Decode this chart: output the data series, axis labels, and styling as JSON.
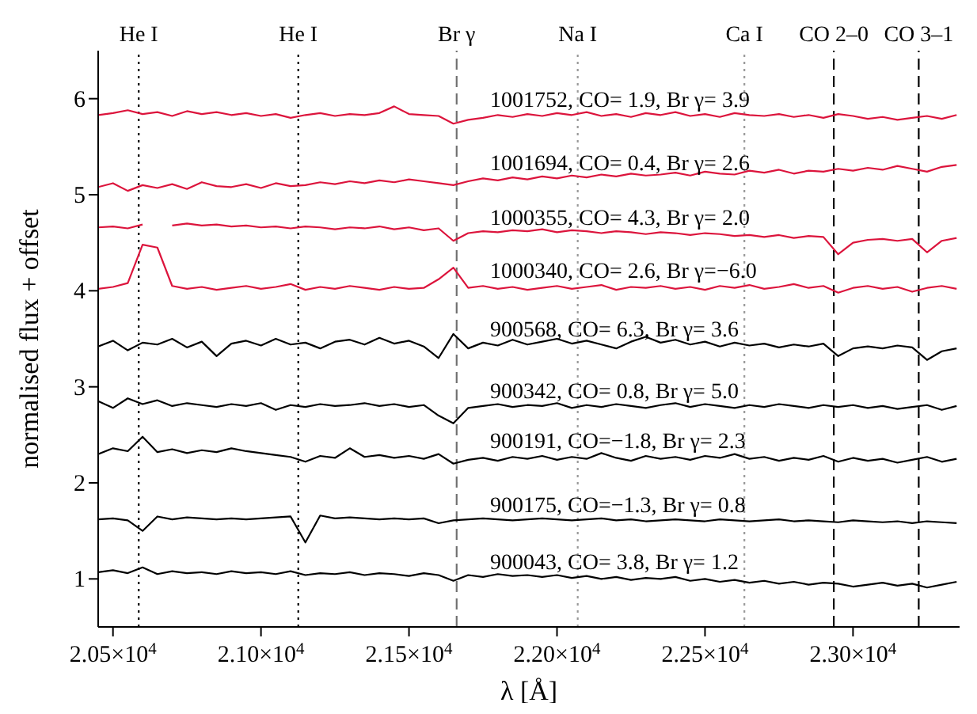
{
  "chart_data": {
    "type": "line",
    "xlabel": "λ [Å]",
    "ylabel": "normalised flux + offset",
    "xlim": [
      20450,
      23360
    ],
    "ylim": [
      0.5,
      6.5
    ],
    "xticks": [
      {
        "value": 20500,
        "label": "2.05×10$^{4}$"
      },
      {
        "value": 21000,
        "label": "2.10×10$^{4}$"
      },
      {
        "value": 21500,
        "label": "2.15×10$^{4}$"
      },
      {
        "value": 22000,
        "label": "2.20×10$^{4}$"
      },
      {
        "value": 22500,
        "label": "2.25×10$^{4}$"
      },
      {
        "value": 23000,
        "label": "2.30×10$^{4}$"
      }
    ],
    "yticks": [
      1,
      2,
      3,
      4,
      5,
      6
    ],
    "grid": false,
    "marker": "none",
    "x": [
      20450,
      20500,
      20550,
      20600,
      20650,
      20700,
      20750,
      20800,
      20850,
      20900,
      20950,
      21000,
      21050,
      21100,
      21150,
      21200,
      21250,
      21300,
      21350,
      21400,
      21450,
      21500,
      21550,
      21600,
      21650,
      21700,
      21750,
      21800,
      21850,
      21900,
      21950,
      22000,
      22050,
      22100,
      22150,
      22200,
      22250,
      22300,
      22350,
      22400,
      22450,
      22500,
      22550,
      22600,
      22650,
      22700,
      22750,
      22800,
      22850,
      22900,
      22950,
      23000,
      23050,
      23100,
      23150,
      23200,
      23250,
      23300,
      23350
    ],
    "ref_lines": [
      {
        "axis": "x",
        "value": 20587,
        "label": "He I",
        "color": "#000000",
        "line_style": "dotted"
      },
      {
        "axis": "x",
        "value": 21126,
        "label": "He I",
        "color": "#000000",
        "line_style": "dotted"
      },
      {
        "axis": "x",
        "value": 21661,
        "label": "Br γ",
        "color": "#707070",
        "line_style": "dashed"
      },
      {
        "axis": "x",
        "value": 22070,
        "label": "Na I",
        "color": "#999999",
        "line_style": "dotted"
      },
      {
        "axis": "x",
        "value": 22633,
        "label": "Ca I",
        "color": "#999999",
        "line_style": "dotted"
      },
      {
        "axis": "x",
        "value": 22935,
        "label": "CO 2–0",
        "color": "#000000",
        "line_style": "dashed"
      },
      {
        "axis": "x",
        "value": 23222,
        "label": "CO 3–1",
        "color": "#000000",
        "line_style": "dashed"
      }
    ],
    "series": [
      {
        "name": "1001752, CO= 1.9, Br γ= 3.9",
        "color": "#dc143c",
        "values": [
          5.83,
          5.85,
          5.88,
          5.84,
          5.86,
          5.82,
          5.87,
          5.84,
          5.86,
          5.83,
          5.85,
          5.82,
          5.84,
          5.8,
          5.83,
          5.85,
          5.82,
          5.84,
          5.83,
          5.85,
          5.92,
          5.84,
          5.83,
          5.82,
          5.74,
          5.78,
          5.8,
          5.83,
          5.81,
          5.84,
          5.82,
          5.85,
          5.83,
          5.86,
          5.82,
          5.84,
          5.81,
          5.85,
          5.83,
          5.86,
          5.82,
          5.84,
          5.81,
          5.85,
          5.83,
          5.82,
          5.84,
          5.81,
          5.83,
          5.8,
          5.84,
          5.82,
          5.79,
          5.81,
          5.78,
          5.8,
          5.82,
          5.79,
          5.83
        ]
      },
      {
        "name": "1001694, CO= 0.4, Br γ= 2.6",
        "color": "#dc143c",
        "values": [
          5.08,
          5.12,
          5.04,
          5.1,
          5.07,
          5.11,
          5.06,
          5.13,
          5.09,
          5.08,
          5.11,
          5.07,
          5.12,
          5.09,
          5.1,
          5.13,
          5.11,
          5.14,
          5.12,
          5.15,
          5.13,
          5.16,
          5.14,
          5.12,
          5.1,
          5.14,
          5.17,
          5.15,
          5.18,
          5.16,
          5.19,
          5.17,
          5.2,
          5.18,
          5.21,
          5.19,
          5.22,
          5.2,
          5.21,
          5.23,
          5.2,
          5.24,
          5.22,
          5.21,
          5.25,
          5.23,
          5.26,
          5.22,
          5.25,
          5.24,
          5.27,
          5.25,
          5.28,
          5.26,
          5.3,
          5.27,
          5.24,
          5.29,
          5.31
        ]
      },
      {
        "name": "1000355, CO= 4.3, Br γ= 2.0",
        "color": "#dc143c",
        "values": [
          4.66,
          4.67,
          4.65,
          4.69,
          null,
          4.68,
          4.7,
          4.68,
          4.69,
          4.67,
          4.68,
          4.66,
          4.67,
          4.65,
          4.67,
          4.66,
          4.64,
          4.66,
          4.65,
          4.67,
          4.64,
          4.66,
          4.63,
          4.65,
          4.52,
          4.6,
          4.62,
          4.61,
          4.63,
          4.62,
          4.64,
          4.61,
          4.63,
          4.62,
          4.6,
          4.62,
          4.61,
          4.59,
          4.61,
          4.6,
          4.58,
          4.6,
          4.59,
          4.57,
          4.58,
          4.56,
          4.58,
          4.55,
          4.57,
          4.56,
          4.38,
          4.5,
          4.53,
          4.54,
          4.52,
          4.54,
          4.4,
          4.52,
          4.55
        ]
      },
      {
        "name": "1000340, CO= 2.6, Br γ=−6.0",
        "color": "#dc143c",
        "values": [
          4.02,
          4.04,
          4.08,
          4.48,
          4.45,
          4.05,
          4.02,
          4.04,
          4.01,
          4.03,
          4.05,
          4.02,
          4.04,
          4.07,
          4.01,
          4.04,
          4.02,
          4.05,
          4.03,
          4.01,
          4.04,
          4.02,
          4.03,
          4.12,
          4.24,
          4.03,
          4.05,
          4.02,
          4.04,
          4.01,
          4.03,
          4.05,
          4.02,
          4.04,
          4.06,
          4.01,
          4.04,
          4.03,
          4.05,
          4.02,
          4.04,
          4.01,
          4.05,
          4.03,
          4.06,
          4.02,
          4.04,
          4.07,
          4.03,
          4.05,
          3.98,
          4.03,
          4.05,
          4.02,
          4.04,
          3.99,
          4.03,
          4.05,
          4.02
        ]
      },
      {
        "name": "900568, CO= 6.3, Br γ= 3.6",
        "color": "#000000",
        "values": [
          3.42,
          3.48,
          3.38,
          3.46,
          3.44,
          3.5,
          3.41,
          3.47,
          3.32,
          3.45,
          3.48,
          3.43,
          3.5,
          3.44,
          3.46,
          3.4,
          3.47,
          3.49,
          3.44,
          3.51,
          3.45,
          3.48,
          3.42,
          3.3,
          3.55,
          3.4,
          3.46,
          3.43,
          3.49,
          3.44,
          3.47,
          3.5,
          3.45,
          3.48,
          3.44,
          3.4,
          3.47,
          3.52,
          3.46,
          3.49,
          3.44,
          3.47,
          3.42,
          3.46,
          3.43,
          3.45,
          3.41,
          3.44,
          3.42,
          3.45,
          3.32,
          3.4,
          3.42,
          3.4,
          3.43,
          3.41,
          3.28,
          3.37,
          3.4
        ]
      },
      {
        "name": "900342, CO= 0.8, Br γ= 5.0",
        "color": "#000000",
        "values": [
          2.85,
          2.78,
          2.88,
          2.82,
          2.86,
          2.8,
          2.83,
          2.81,
          2.79,
          2.82,
          2.8,
          2.83,
          2.76,
          2.81,
          2.79,
          2.82,
          2.8,
          2.81,
          2.83,
          2.8,
          2.82,
          2.79,
          2.81,
          2.7,
          2.62,
          2.78,
          2.8,
          2.82,
          2.79,
          2.81,
          2.8,
          2.83,
          2.78,
          2.81,
          2.79,
          2.82,
          2.8,
          2.78,
          2.81,
          2.83,
          2.79,
          2.82,
          2.8,
          2.78,
          2.81,
          2.79,
          2.82,
          2.8,
          2.78,
          2.81,
          2.79,
          2.81,
          2.78,
          2.8,
          2.77,
          2.79,
          2.81,
          2.76,
          2.8
        ]
      },
      {
        "name": "900191, CO=−1.8, Br γ= 2.3",
        "color": "#000000",
        "values": [
          2.3,
          2.36,
          2.33,
          2.48,
          2.32,
          2.35,
          2.31,
          2.34,
          2.32,
          2.36,
          2.33,
          2.31,
          2.29,
          2.27,
          2.22,
          2.28,
          2.26,
          2.36,
          2.27,
          2.29,
          2.26,
          2.28,
          2.25,
          2.3,
          2.2,
          2.24,
          2.26,
          2.23,
          2.27,
          2.25,
          2.28,
          2.24,
          2.27,
          2.25,
          2.31,
          2.26,
          2.23,
          2.28,
          2.25,
          2.27,
          2.24,
          2.28,
          2.26,
          2.3,
          2.25,
          2.27,
          2.23,
          2.26,
          2.24,
          2.28,
          2.22,
          2.26,
          2.23,
          2.25,
          2.21,
          2.24,
          2.27,
          2.22,
          2.25
        ]
      },
      {
        "name": "900175, CO=−1.3, Br γ= 0.8",
        "color": "#000000",
        "values": [
          1.62,
          1.63,
          1.61,
          1.5,
          1.65,
          1.62,
          1.64,
          1.63,
          1.62,
          1.63,
          1.62,
          1.63,
          1.64,
          1.65,
          1.38,
          1.66,
          1.63,
          1.64,
          1.63,
          1.62,
          1.63,
          1.62,
          1.63,
          1.58,
          1.61,
          1.62,
          1.63,
          1.62,
          1.61,
          1.62,
          1.63,
          1.62,
          1.61,
          1.62,
          1.63,
          1.61,
          1.62,
          1.6,
          1.61,
          1.62,
          1.61,
          1.6,
          1.62,
          1.61,
          1.6,
          1.61,
          1.62,
          1.6,
          1.61,
          1.6,
          1.59,
          1.61,
          1.6,
          1.59,
          1.6,
          1.58,
          1.6,
          1.59,
          1.58
        ]
      },
      {
        "name": "900043, CO= 3.8, Br γ= 1.2",
        "color": "#000000",
        "values": [
          1.07,
          1.09,
          1.06,
          1.12,
          1.05,
          1.08,
          1.06,
          1.07,
          1.05,
          1.08,
          1.06,
          1.07,
          1.05,
          1.08,
          1.04,
          1.06,
          1.05,
          1.07,
          1.04,
          1.06,
          1.05,
          1.03,
          1.06,
          1.04,
          0.98,
          1.04,
          1.02,
          1.05,
          1.03,
          1.04,
          1.02,
          1.04,
          1.01,
          1.03,
          1.0,
          1.02,
          0.99,
          1.01,
          1.0,
          1.02,
          0.98,
          1.0,
          0.97,
          0.99,
          0.96,
          0.98,
          0.95,
          0.97,
          0.94,
          0.96,
          0.95,
          0.92,
          0.94,
          0.96,
          0.93,
          0.95,
          0.91,
          0.94,
          0.97
        ]
      }
    ]
  }
}
